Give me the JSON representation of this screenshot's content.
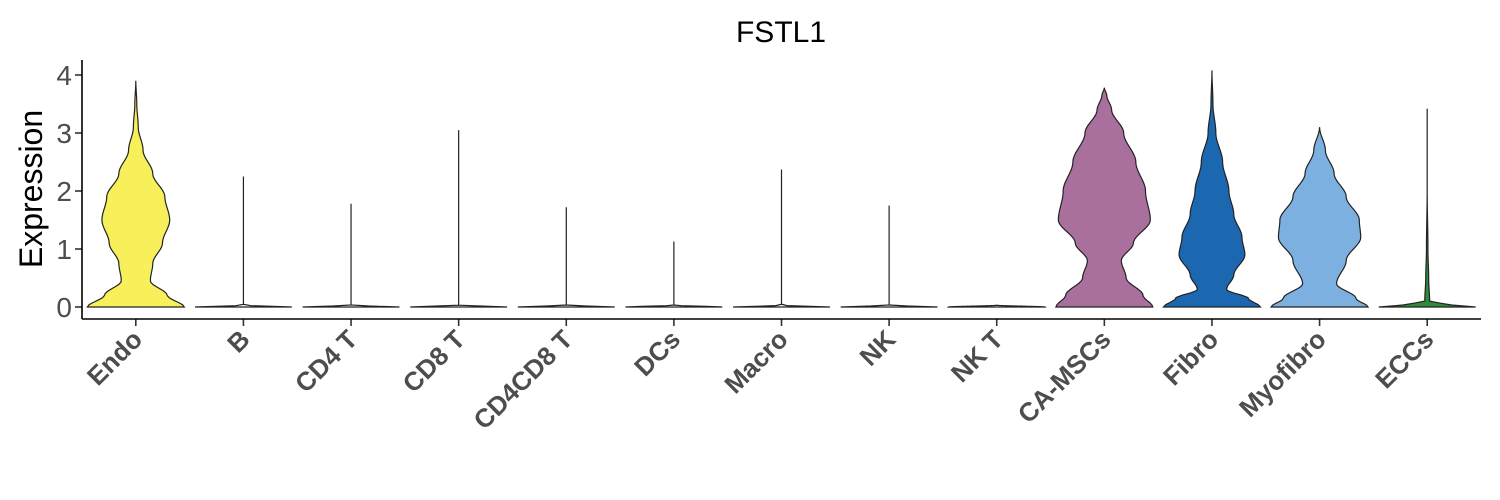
{
  "chart_data": {
    "type": "violin",
    "title": "FSTL1",
    "xlabel": "",
    "ylabel": "Expression",
    "ylim": [
      -0.15,
      4.3
    ],
    "yticks": [
      "0",
      "1",
      "2",
      "3",
      "4"
    ],
    "categories": [
      "Endo",
      "B",
      "CD4 T",
      "CD8 T",
      "CD4CD8 T",
      "DCs",
      "Macro",
      "NK",
      "NK T",
      "CA-MSCs",
      "Fibro",
      "Myofibro",
      "ECCs"
    ],
    "max_values": [
      3.9,
      2.25,
      1.78,
      3.05,
      1.72,
      1.13,
      2.37,
      1.75,
      0.0,
      3.78,
      4.08,
      3.1,
      3.42
    ],
    "fill_colors": [
      "#F7F05A",
      "#FFFFFF",
      "#FFFFFF",
      "#FFFFFF",
      "#FFFFFF",
      "#FFFFFF",
      "#FFFFFF",
      "#FFFFFF",
      "#FFFFFF",
      "#A9709D",
      "#1C68B0",
      "#7CB0E0",
      "#2E8B3A"
    ],
    "density_profiles": [
      [
        [
          0,
          1.0
        ],
        [
          0.2,
          0.65
        ],
        [
          0.45,
          0.3
        ],
        [
          0.75,
          0.35
        ],
        [
          1.1,
          0.55
        ],
        [
          1.5,
          0.7
        ],
        [
          1.9,
          0.6
        ],
        [
          2.3,
          0.35
        ],
        [
          2.7,
          0.15
        ],
        [
          3.1,
          0.05
        ],
        [
          3.5,
          0.02
        ],
        [
          3.9,
          0.0
        ]
      ],
      [
        [
          0,
          1.0
        ],
        [
          0.03,
          0.0
        ],
        [
          2.25,
          0.0
        ]
      ],
      [
        [
          0,
          1.0
        ],
        [
          0.03,
          0.0
        ],
        [
          1.78,
          0.0
        ]
      ],
      [
        [
          0,
          1.0
        ],
        [
          0.03,
          0.0
        ],
        [
          3.05,
          0.0
        ]
      ],
      [
        [
          0,
          1.0
        ],
        [
          0.03,
          0.0
        ],
        [
          1.72,
          0.0
        ]
      ],
      [
        [
          0,
          1.0
        ],
        [
          0.03,
          0.0
        ],
        [
          1.13,
          0.0
        ]
      ],
      [
        [
          0,
          1.0
        ],
        [
          0.03,
          0.0
        ],
        [
          2.37,
          0.0
        ]
      ],
      [
        [
          0,
          1.0
        ],
        [
          0.03,
          0.0
        ],
        [
          1.75,
          0.0
        ]
      ],
      [
        [
          0,
          1.0
        ],
        [
          0.03,
          0.0
        ]
      ],
      [
        [
          0,
          1.0
        ],
        [
          0.2,
          0.8
        ],
        [
          0.5,
          0.45
        ],
        [
          0.8,
          0.35
        ],
        [
          1.1,
          0.6
        ],
        [
          1.5,
          0.95
        ],
        [
          2.0,
          0.85
        ],
        [
          2.5,
          0.65
        ],
        [
          3.0,
          0.4
        ],
        [
          3.4,
          0.15
        ],
        [
          3.65,
          0.05
        ],
        [
          3.78,
          0.0
        ]
      ],
      [
        [
          0,
          1.0
        ],
        [
          0.15,
          0.75
        ],
        [
          0.3,
          0.3
        ],
        [
          0.55,
          0.45
        ],
        [
          0.9,
          0.68
        ],
        [
          1.2,
          0.62
        ],
        [
          1.6,
          0.45
        ],
        [
          2.0,
          0.35
        ],
        [
          2.5,
          0.22
        ],
        [
          3.0,
          0.08
        ],
        [
          3.5,
          0.02
        ],
        [
          4.08,
          0.0
        ]
      ],
      [
        [
          0,
          1.0
        ],
        [
          0.15,
          0.75
        ],
        [
          0.4,
          0.35
        ],
        [
          0.8,
          0.55
        ],
        [
          1.2,
          0.85
        ],
        [
          1.5,
          0.82
        ],
        [
          1.9,
          0.55
        ],
        [
          2.3,
          0.3
        ],
        [
          2.7,
          0.12
        ],
        [
          3.1,
          0.0
        ]
      ],
      [
        [
          0,
          1.0
        ],
        [
          0.05,
          0.35
        ],
        [
          0.1,
          0.05
        ],
        [
          0.5,
          0.03
        ],
        [
          1.0,
          0.015
        ],
        [
          2.0,
          0.0
        ],
        [
          3.42,
          0.0
        ]
      ]
    ]
  }
}
